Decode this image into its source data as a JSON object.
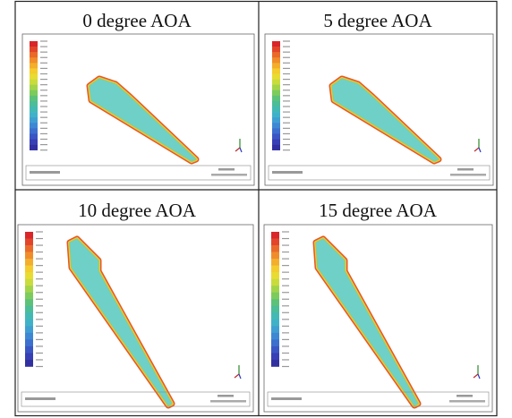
{
  "cells": [
    {
      "title": "0 degree AOA"
    },
    {
      "title": "5 degree AOA"
    },
    {
      "title": "10 degree AOA"
    },
    {
      "title": "15 degree AOA"
    }
  ]
}
